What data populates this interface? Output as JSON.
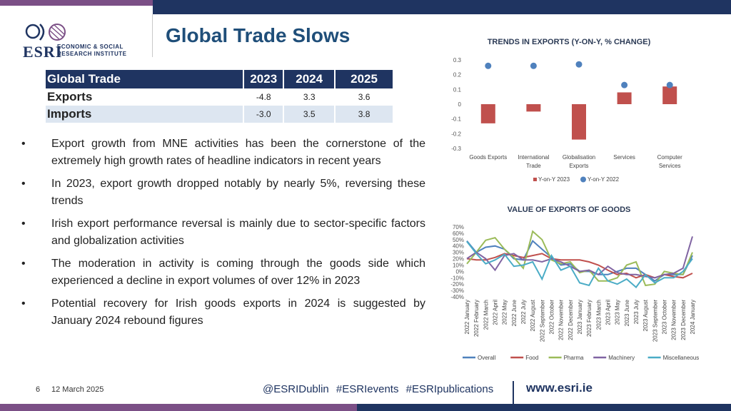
{
  "header": {
    "title": "Global Trade Slows",
    "logo_text": "ESRI",
    "logo_subtitle_line1": "ECONOMIC & SOCIAL",
    "logo_subtitle_line2": "RESEARCH INSTITUTE"
  },
  "colors": {
    "navy": "#1f3461",
    "purple": "#7b4f86",
    "bar_red": "#c0504d",
    "dot_blue": "#4f81bd"
  },
  "trade_table": {
    "headers": [
      "Global Trade",
      "2023",
      "2024",
      "2025"
    ],
    "rows": [
      {
        "label": "Exports",
        "values": [
          "-4.8",
          "3.3",
          "3.6"
        ]
      },
      {
        "label": "Imports",
        "values": [
          "-3.0",
          "3.5",
          "3.8"
        ]
      }
    ]
  },
  "bullets": [
    {
      "marker": "•",
      "text": "Export growth from MNE activities has been the cornerstone of the extremely high growth rates of headline indicators in recent years"
    },
    {
      "marker": "•",
      "text": "In 2023, export growth dropped notably by nearly 5%, reversing these trends"
    },
    {
      "marker": "•",
      "text": "Irish export performance reversal is mainly due to sector-specific factors and globalization activities"
    },
    {
      "marker": "•",
      "text": "The moderation in activity is coming through the goods side which experienced a decline in export volumes of over 12% in 2023"
    },
    {
      "marker": "•",
      "text": "Potential recovery for Irish goods exports in 2024 is suggested by January 2024 rebound figures"
    }
  ],
  "chart_data": [
    {
      "type": "bar",
      "title": "TRENDS IN EXPORTS (Y-ON-Y, % CHANGE)",
      "categories": [
        "Goods Exports",
        "International Trade",
        "Globalisation Exports",
        "Services",
        "Computer Services"
      ],
      "category_lines": [
        [
          "Goods Exports"
        ],
        [
          "International",
          "Trade"
        ],
        [
          "Globalisation",
          "Exports"
        ],
        [
          "Services"
        ],
        [
          "Computer",
          "Services"
        ]
      ],
      "series": [
        {
          "name": "Y-on-Y 2023",
          "kind": "bar",
          "color": "#c0504d",
          "values": [
            -0.13,
            -0.05,
            -0.24,
            0.08,
            0.12
          ]
        },
        {
          "name": "Y-on-Y 2022",
          "kind": "dot",
          "color": "#4f81bd",
          "values": [
            0.26,
            0.26,
            0.27,
            0.13,
            0.13
          ]
        }
      ],
      "ylim": [
        -0.3,
        0.3
      ],
      "yticks": [
        "-0.3",
        "-0.2",
        "-0.1",
        "0",
        "0.1",
        "0.2",
        "0.3"
      ],
      "grid": false,
      "legend": "bottom"
    },
    {
      "type": "line",
      "title": "VALUE OF EXPORTS OF GOODS",
      "x": [
        "2022 January",
        "2022 February",
        "2022 March",
        "2022 April",
        "2022 May",
        "2022 June",
        "2022 July",
        "2022 August",
        "2022 September",
        "2022 October",
        "2022 November",
        "2022 December",
        "2023 January",
        "2023 February",
        "2023 March",
        "2023 April",
        "2023 May",
        "2023 June",
        "2023 July",
        "2023 August",
        "2023 September",
        "2023 October",
        "2023 November",
        "2023 December",
        "2024 January"
      ],
      "yticks": [
        "70%",
        "60%",
        "50%",
        "40%",
        "30%",
        "20%",
        "10%",
        "0%",
        "-10%",
        "-20%",
        "-30%",
        "-40%"
      ],
      "ylim": [
        -40,
        70
      ],
      "grid": false,
      "legend": "bottom",
      "series": [
        {
          "name": "Overall",
          "color": "#4f81bd",
          "values": [
            48,
            30,
            38,
            40,
            35,
            20,
            18,
            48,
            35,
            22,
            10,
            12,
            0,
            0,
            -5,
            -5,
            0,
            5,
            5,
            -5,
            -15,
            -5,
            -5,
            -5,
            25
          ]
        },
        {
          "name": "Food",
          "color": "#c0504d",
          "values": [
            20,
            18,
            18,
            22,
            28,
            25,
            22,
            25,
            28,
            20,
            18,
            18,
            18,
            15,
            10,
            2,
            -5,
            -3,
            -10,
            -5,
            -10,
            -5,
            -8,
            -10,
            -3
          ]
        },
        {
          "name": "Pharma",
          "color": "#9bbb59",
          "values": [
            12,
            30,
            49,
            53,
            35,
            22,
            5,
            63,
            50,
            18,
            12,
            15,
            -2,
            2,
            -15,
            -15,
            -10,
            10,
            15,
            -22,
            -20,
            0,
            -3,
            -5,
            30
          ]
        },
        {
          "name": "Machinery",
          "color": "#8064a2",
          "values": [
            20,
            30,
            20,
            2,
            25,
            28,
            18,
            18,
            15,
            20,
            15,
            8,
            0,
            2,
            -5,
            8,
            -2,
            -5,
            -5,
            -8,
            -10,
            -5,
            -3,
            5,
            55
          ]
        },
        {
          "name": "Miscellaneous",
          "color": "#4bacc6",
          "values": [
            47,
            28,
            12,
            18,
            27,
            8,
            10,
            15,
            -12,
            25,
            2,
            8,
            -18,
            -22,
            5,
            -15,
            -20,
            -12,
            -25,
            -5,
            -18,
            -10,
            -10,
            0,
            20
          ]
        }
      ]
    }
  ],
  "footer": {
    "page_number": "6",
    "date": "12 March 2025",
    "social": "@ESRIDublin   #ESRIevents   #ESRIpublications",
    "url": "www.esri.ie"
  }
}
